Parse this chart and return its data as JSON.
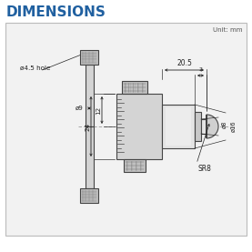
{
  "title": "DIMENSIONS",
  "title_color": "#2060A0",
  "unit_text": "Unit: mm",
  "bg_outer": "#ffffff",
  "bg_box": "#f2f2f2",
  "border_color": "#bbbbbb",
  "draw_color": "#444444",
  "dim_color": "#222222",
  "fill_body": "#d4d4d4",
  "fill_knurl": "#c0c0c0",
  "fill_light": "#e4e4e4",
  "annotations": {
    "hole": "ø4.5 hole",
    "dim_12": "12",
    "dim_24": "24",
    "dim_9": "ø9",
    "dim_20_5": "20.5",
    "dim_2": "2",
    "dim_8": "ø8",
    "dim_16": "ø16",
    "dim_sr8": "SR8"
  },
  "figsize": [
    2.77,
    2.77
  ],
  "dpi": 100
}
